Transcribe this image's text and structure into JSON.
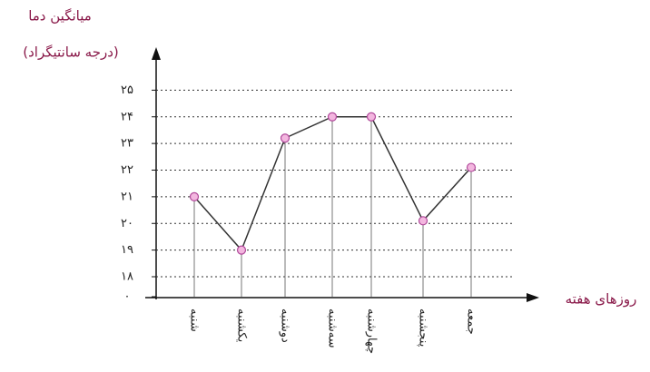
{
  "chart_data": {
    "type": "line",
    "title": "میانگین دما",
    "subtitle": "(درجه سانتیگراد)",
    "x_label": "روزهای هفته",
    "categories": [
      "شنبه",
      "یکشنبه",
      "دوشنبه",
      "سه‌شنبه",
      "چهارشنبه",
      "پنجشنبه",
      "جمعه"
    ],
    "series": [
      {
        "name": "میانگین دما",
        "color": "#333333",
        "values": [
          21,
          19,
          23.2,
          24,
          24,
          20.1,
          22.1
        ]
      }
    ],
    "marker_color": "#f3b6df",
    "ylim": [
      0,
      26
    ],
    "axis_break": true,
    "yticks": [
      {
        "value": 0,
        "label": "۰"
      },
      {
        "value": 18,
        "label": "۱۸"
      },
      {
        "value": 19,
        "label": "۱۹"
      },
      {
        "value": 20,
        "label": "۲۰"
      },
      {
        "value": 21,
        "label": "۲۱"
      },
      {
        "value": 22,
        "label": "۲۲"
      },
      {
        "value": 23,
        "label": "۲۳"
      },
      {
        "value": 24,
        "label": "۲۴"
      },
      {
        "value": 25,
        "label": "۲۵"
      }
    ],
    "grid": true
  }
}
